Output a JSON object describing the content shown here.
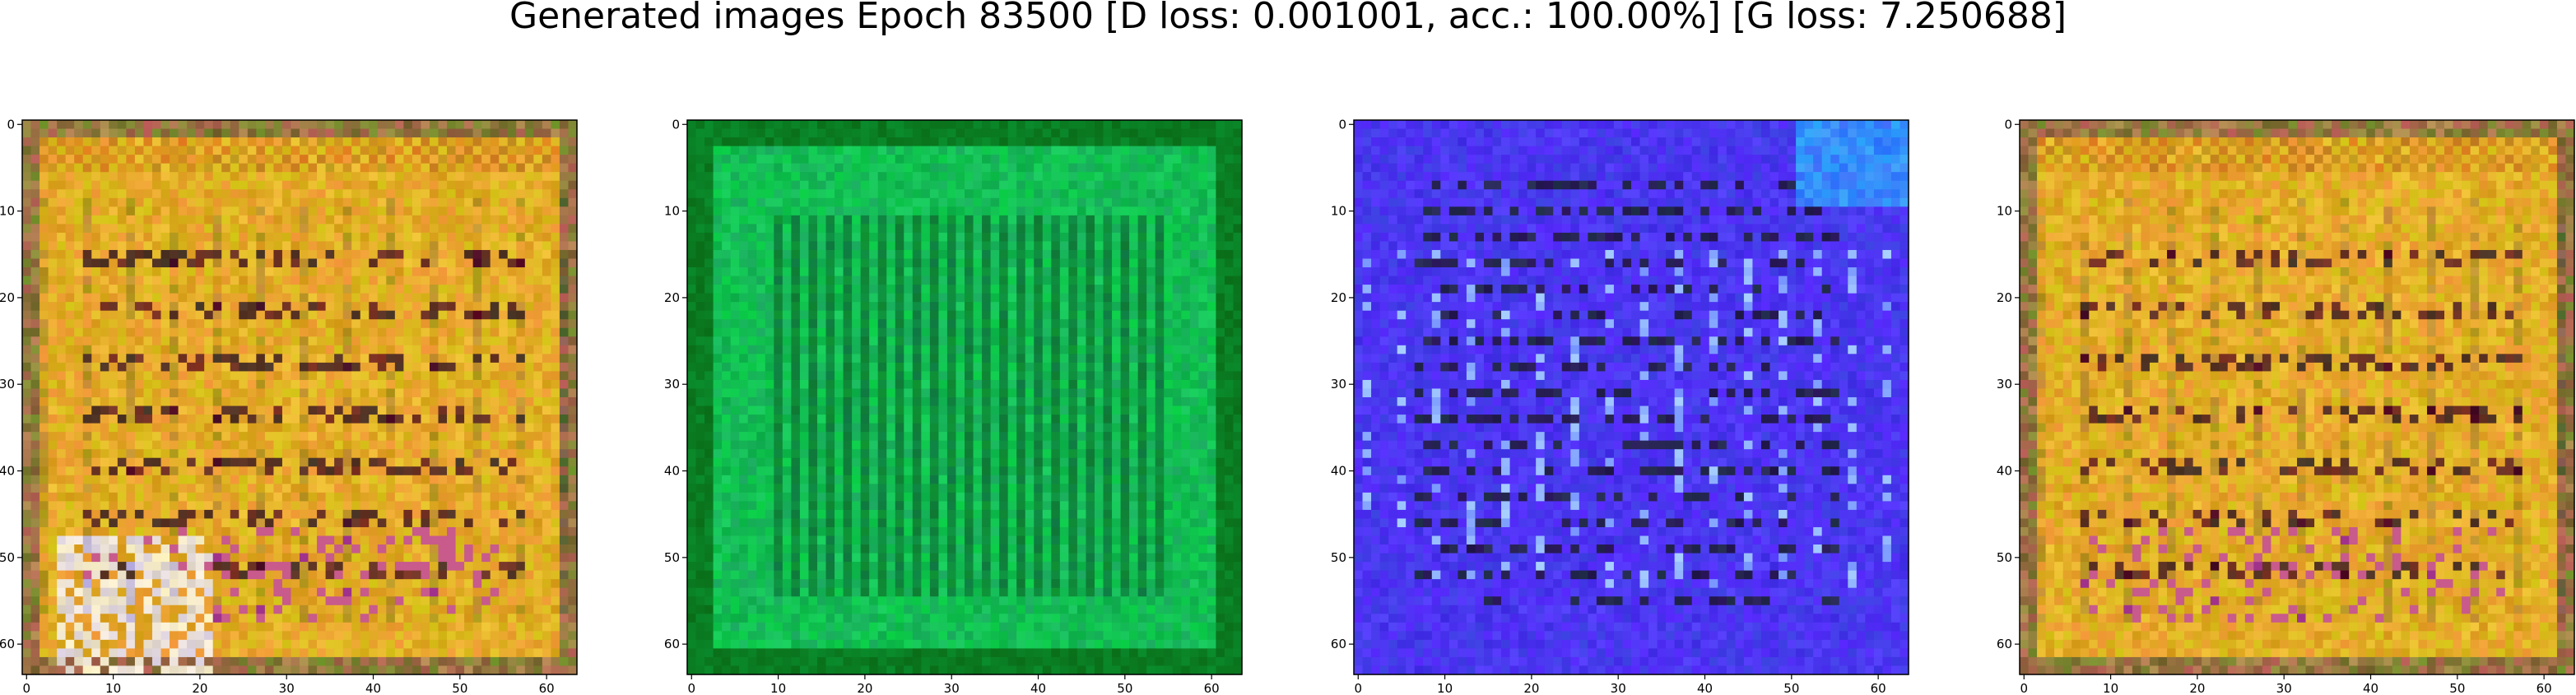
{
  "figure": {
    "title": "Generated images Epoch 83500 [D loss: 0.001001, acc.: 100.00%] [G loss: 7.250688]"
  },
  "chart_data": [
    {
      "type": "heatmap",
      "x_ticks": [
        "0",
        "10",
        "20",
        "30",
        "40",
        "50",
        "60"
      ],
      "y_ticks": [
        "0",
        "10",
        "20",
        "30",
        "40",
        "50",
        "60"
      ],
      "xlim": [
        -0.5,
        63.5
      ],
      "ylim": [
        63.5,
        -0.5
      ],
      "dominant_color": "#d8a21a",
      "style": "orange"
    },
    {
      "type": "heatmap",
      "x_ticks": [
        "0",
        "10",
        "20",
        "30",
        "40",
        "50",
        "60"
      ],
      "y_ticks": [
        "0",
        "10",
        "20",
        "30",
        "40",
        "50",
        "60"
      ],
      "xlim": [
        -0.5,
        63.5
      ],
      "ylim": [
        63.5,
        -0.5
      ],
      "dominant_color": "#13b04a",
      "style": "green"
    },
    {
      "type": "heatmap",
      "x_ticks": [
        "0",
        "10",
        "20",
        "30",
        "40",
        "50",
        "60"
      ],
      "y_ticks": [
        "0",
        "10",
        "20",
        "30",
        "40",
        "50",
        "60"
      ],
      "xlim": [
        -0.5,
        63.5
      ],
      "ylim": [
        63.5,
        -0.5
      ],
      "dominant_color": "#3a2ae6",
      "style": "blue"
    },
    {
      "type": "heatmap",
      "x_ticks": [
        "0",
        "10",
        "20",
        "30",
        "40",
        "50",
        "60"
      ],
      "y_ticks": [
        "0",
        "10",
        "20",
        "30",
        "40",
        "50",
        "60"
      ],
      "xlim": [
        -0.5,
        63.5
      ],
      "ylim": [
        63.5,
        -0.5
      ],
      "dominant_color": "#d8a21a",
      "style": "orange"
    }
  ]
}
